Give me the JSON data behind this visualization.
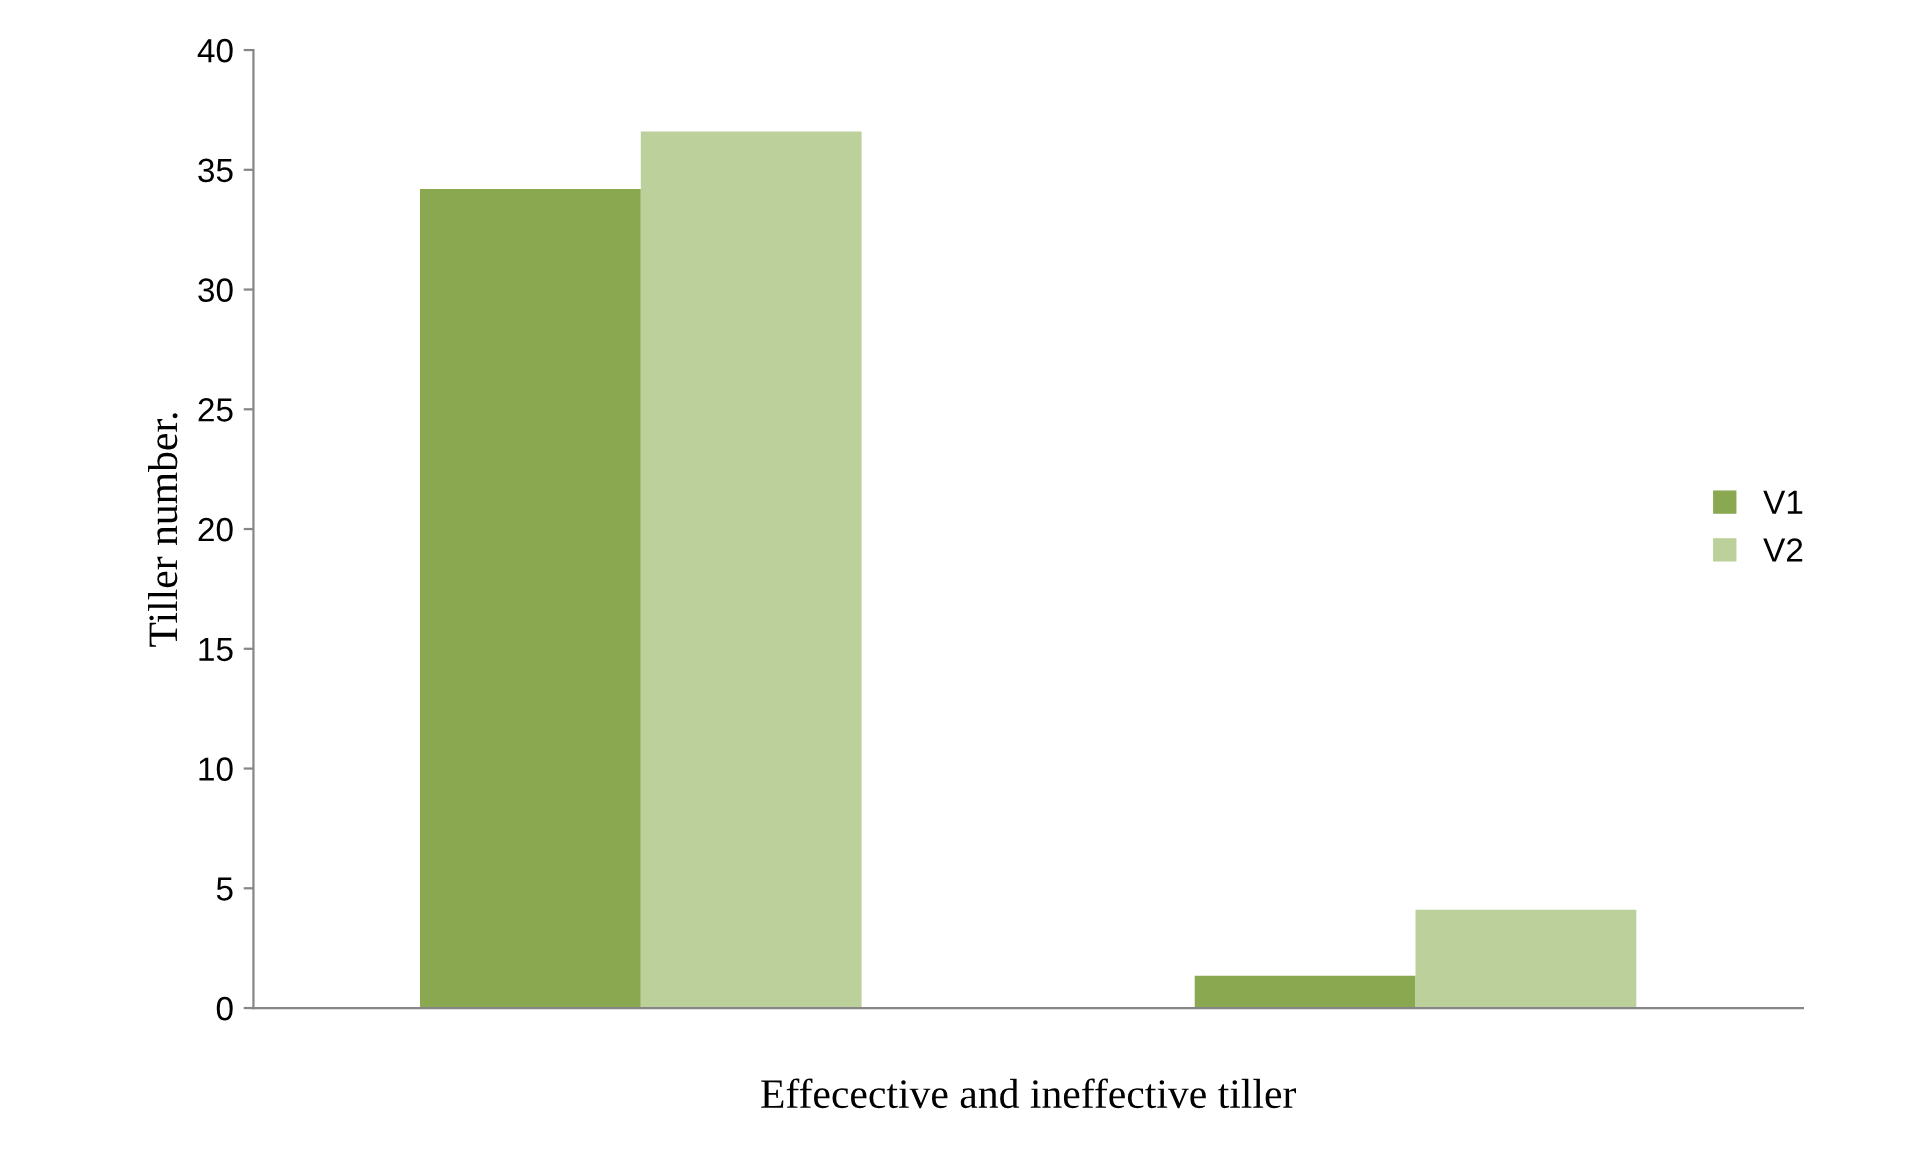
{
  "chart_data": {
    "type": "bar",
    "xlabel": "Effecective and ineffective tiller",
    "ylabel": "Tiller number.",
    "categories": [
      null,
      null
    ],
    "series": [
      {
        "name": "V1",
        "color": "#8aa84f",
        "values": [
          34.2,
          1.35
        ]
      },
      {
        "name": "V2",
        "color": "#bbd09a",
        "values": [
          36.6,
          4.1
        ]
      }
    ],
    "ylim": [
      0,
      40
    ],
    "yticks": [
      0,
      5,
      10,
      15,
      20,
      25,
      30,
      35,
      40
    ],
    "grid": false,
    "legend": "right"
  }
}
